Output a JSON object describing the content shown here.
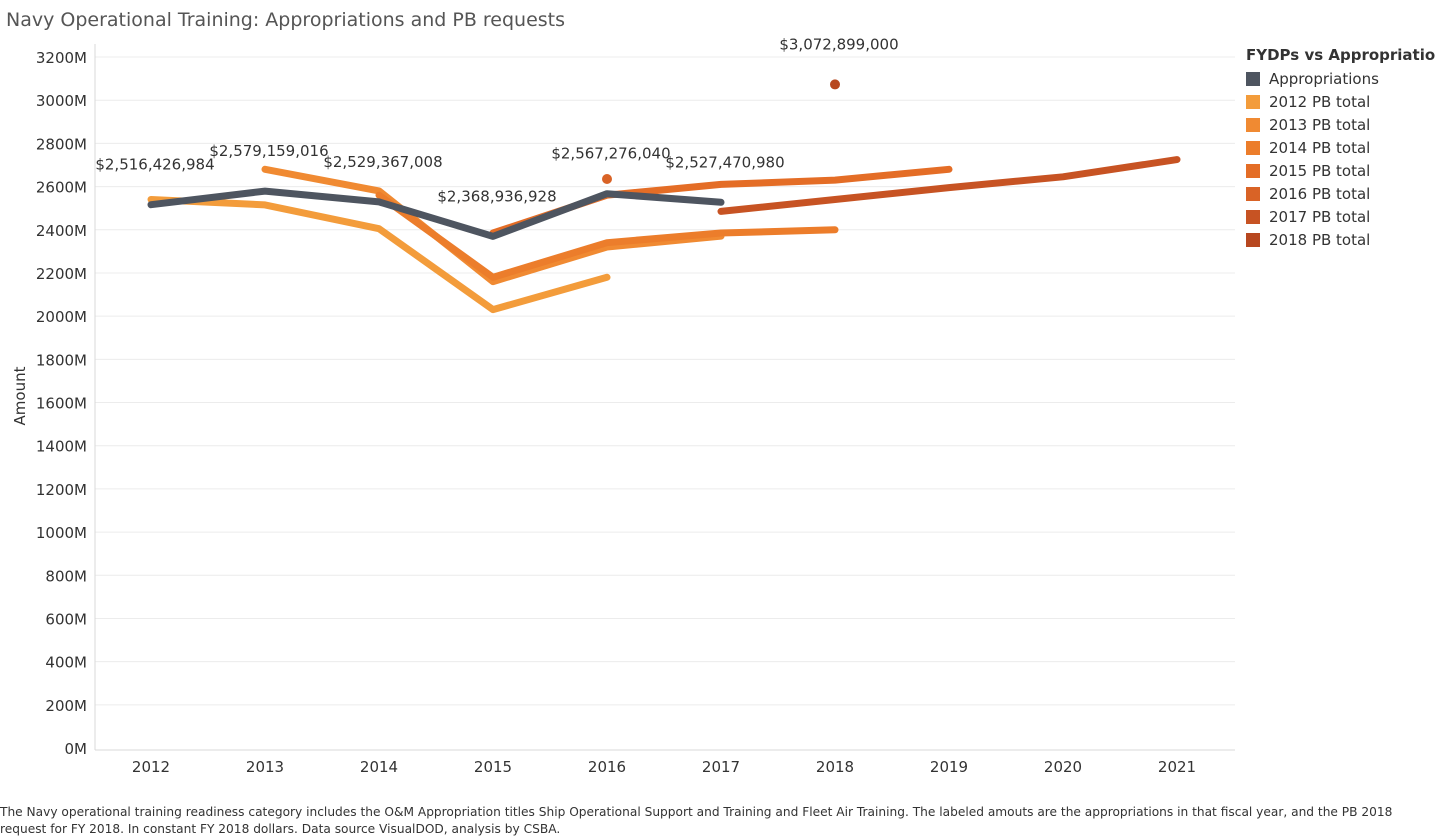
{
  "chart_data": {
    "type": "line",
    "title": "Navy Operational Training:  Appropriations and PB requests",
    "ylabel": "Amount",
    "xlabel": "",
    "x": [
      2012,
      2013,
      2014,
      2015,
      2016,
      2017,
      2018,
      2019,
      2020,
      2021
    ],
    "ylim": [
      0,
      3200
    ],
    "y_unit": "M",
    "yticks": [
      0,
      200,
      400,
      600,
      800,
      1000,
      1200,
      1400,
      1600,
      1800,
      2000,
      2200,
      2400,
      2600,
      2800,
      3000,
      3200
    ],
    "ytick_labels": [
      "0M",
      "200M",
      "400M",
      "600M",
      "800M",
      "1000M",
      "1200M",
      "1400M",
      "1600M",
      "1800M",
      "2000M",
      "2200M",
      "2400M",
      "2600M",
      "2800M",
      "3000M",
      "3200M"
    ],
    "grid": true,
    "legend_title": "FYDPs vs Appropriations",
    "legend_position": "top-right",
    "series": [
      {
        "name": "Appropriations",
        "color": "#4e5560",
        "points": [
          [
            2012,
            2516
          ],
          [
            2013,
            2579
          ],
          [
            2014,
            2529
          ],
          [
            2015,
            2369
          ],
          [
            2016,
            2567
          ],
          [
            2017,
            2527
          ]
        ]
      },
      {
        "name": "2012 PB total",
        "color": "#f39c3b",
        "points": [
          [
            2012,
            2540
          ],
          [
            2013,
            2515
          ],
          [
            2014,
            2405
          ],
          [
            2015,
            2030
          ],
          [
            2016,
            2180
          ]
        ]
      },
      {
        "name": "2013 PB total",
        "color": "#f08a32",
        "points": [
          [
            2013,
            2680
          ],
          [
            2014,
            2580
          ],
          [
            2015,
            2160
          ],
          [
            2016,
            2320
          ],
          [
            2017,
            2370
          ]
        ]
      },
      {
        "name": "2014 PB total",
        "color": "#ec7d2b",
        "points": [
          [
            2014,
            2560
          ],
          [
            2015,
            2180
          ],
          [
            2016,
            2340
          ],
          [
            2017,
            2385
          ],
          [
            2018,
            2400
          ]
        ]
      },
      {
        "name": "2015 PB total",
        "color": "#e46d26",
        "points": [
          [
            2015,
            2385
          ],
          [
            2016,
            2560
          ],
          [
            2017,
            2610
          ],
          [
            2018,
            2630
          ],
          [
            2019,
            2680
          ]
        ]
      },
      {
        "name": "2016 PB total",
        "color": "#d96326",
        "points": [
          [
            2016,
            2635
          ]
        ]
      },
      {
        "name": "2017 PB total",
        "color": "#c75323",
        "points": [
          [
            2017,
            2485
          ],
          [
            2018,
            2540
          ],
          [
            2019,
            2595
          ],
          [
            2020,
            2645
          ],
          [
            2021,
            2725
          ]
        ]
      },
      {
        "name": "2018 PB total",
        "color": "#b7471f",
        "points": [
          [
            2018,
            3073
          ]
        ]
      }
    ],
    "annotations": [
      {
        "x": 2012,
        "y": 2516,
        "text": "$2,516,426,984"
      },
      {
        "x": 2013,
        "y": 2579,
        "text": "$2,579,159,016"
      },
      {
        "x": 2014,
        "y": 2529,
        "text": "$2,529,367,008"
      },
      {
        "x": 2015,
        "y": 2369,
        "text": "$2,368,936,928"
      },
      {
        "x": 2016,
        "y": 2567,
        "text": "$2,567,276,040"
      },
      {
        "x": 2017,
        "y": 2527,
        "text": "$2,527,470,980"
      },
      {
        "x": 2018,
        "y": 3073,
        "text": "$3,072,899,000"
      }
    ]
  },
  "footnote": "The Navy operational training readiness category includes the O&M Appropriation titles Ship Operational Support and Training and Fleet Air Training.  The labeled amouts are the appropriations in that fiscal year, and the PB 2018 request for FY 2018.  In constant FY 2018 dollars. Data source VisualDOD, analysis by CSBA."
}
